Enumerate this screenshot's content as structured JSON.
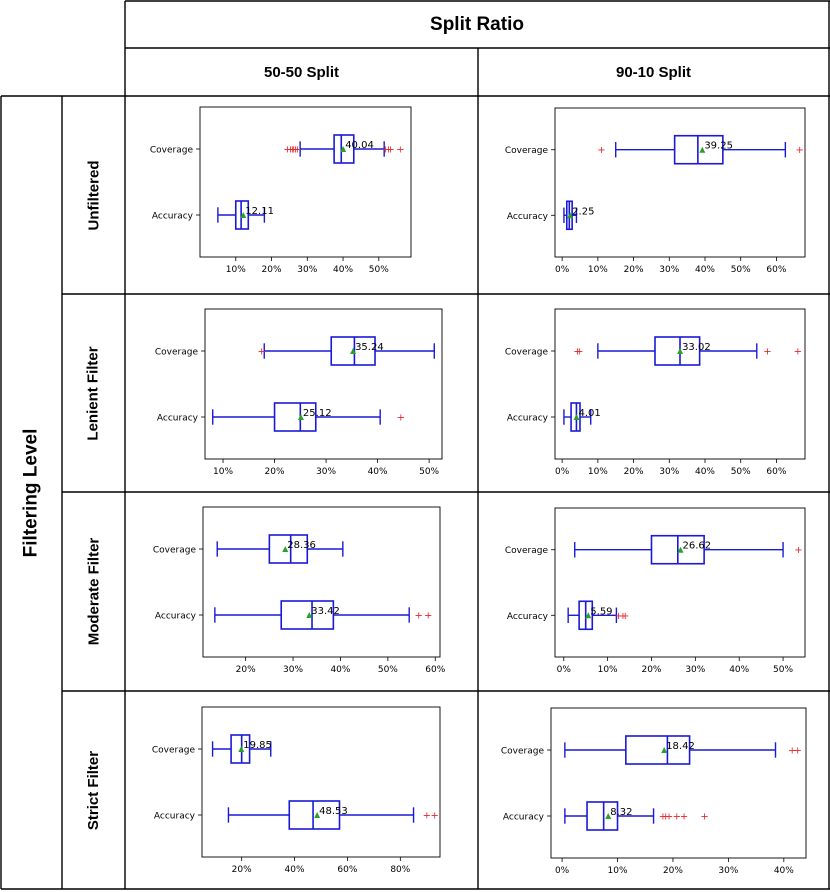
{
  "header": {
    "col_group": "Split Ratio",
    "row_group": "Filtering Level"
  },
  "columns": [
    "50-50 Split",
    "90-10 Split"
  ],
  "rows": [
    "Unfiltered",
    "Lenient Filter",
    "Moderate Filter",
    "Strict Filter"
  ],
  "colors": {
    "box": "#1a1ad6",
    "mean": "#2ca02c",
    "outlier": "#e8262b"
  },
  "chart_data": [
    {
      "type": "boxplot",
      "row": "Unfiltered",
      "column": "50-50 Split",
      "orientation": "horizontal",
      "xlim": [
        0,
        59
      ],
      "ticks": [
        10,
        20,
        30,
        40,
        50
      ],
      "tick_labels": [
        "10%",
        "20%",
        "30%",
        "40%",
        "50%"
      ],
      "categories": [
        "Coverage",
        "Accuracy"
      ],
      "series": [
        {
          "name": "Coverage",
          "whisker_low": 28,
          "q1": 37.5,
          "median": 39.5,
          "q3": 43,
          "whisker_high": 51.5,
          "mean": 40.04,
          "mean_label": "40.04",
          "outliers": [
            24.5,
            25.3,
            25.8,
            26.2,
            26.7,
            27.2,
            51.9,
            52.7,
            53.3,
            56
          ]
        },
        {
          "name": "Accuracy",
          "whisker_low": 5,
          "q1": 10,
          "median": 11.5,
          "q3": 13.5,
          "whisker_high": 18,
          "mean": 12.11,
          "mean_label": "12.11",
          "outliers": []
        }
      ]
    },
    {
      "type": "boxplot",
      "row": "Unfiltered",
      "column": "90-10 Split",
      "orientation": "horizontal",
      "xlim": [
        -2,
        68
      ],
      "ticks": [
        0,
        10,
        20,
        30,
        40,
        50,
        60
      ],
      "tick_labels": [
        "0%",
        "10%",
        "20%",
        "30%",
        "40%",
        "50%",
        "60%"
      ],
      "categories": [
        "Coverage",
        "Accuracy"
      ],
      "series": [
        {
          "name": "Coverage",
          "whisker_low": 15,
          "q1": 31.5,
          "median": 38,
          "q3": 45,
          "whisker_high": 62.5,
          "mean": 39.25,
          "mean_label": "39.25",
          "outliers": [
            11,
            66.5
          ]
        },
        {
          "name": "Accuracy",
          "whisker_low": 0.5,
          "q1": 1.3,
          "median": 2,
          "q3": 2.8,
          "whisker_high": 4,
          "mean": 2.25,
          "mean_label": "2.25",
          "outliers": []
        }
      ]
    },
    {
      "type": "boxplot",
      "row": "Lenient Filter",
      "column": "50-50 Split",
      "orientation": "horizontal",
      "xlim": [
        6.5,
        52.5
      ],
      "ticks": [
        10,
        20,
        30,
        40,
        50
      ],
      "tick_labels": [
        "10%",
        "20%",
        "30%",
        "40%",
        "50%"
      ],
      "categories": [
        "Coverage",
        "Accuracy"
      ],
      "series": [
        {
          "name": "Coverage",
          "whisker_low": 18,
          "q1": 31,
          "median": 35.5,
          "q3": 39.5,
          "whisker_high": 51,
          "mean": 35.24,
          "mean_label": "35.24",
          "outliers": [
            17.5
          ]
        },
        {
          "name": "Accuracy",
          "whisker_low": 8,
          "q1": 20,
          "median": 25,
          "q3": 28,
          "whisker_high": 40.5,
          "mean": 25.12,
          "mean_label": "25.12",
          "outliers": [
            44.5
          ]
        }
      ]
    },
    {
      "type": "boxplot",
      "row": "Lenient Filter",
      "column": "90-10 Split",
      "orientation": "horizontal",
      "xlim": [
        -2,
        68
      ],
      "ticks": [
        0,
        10,
        20,
        30,
        40,
        50,
        60
      ],
      "tick_labels": [
        "0%",
        "10%",
        "20%",
        "30%",
        "40%",
        "50%",
        "60%"
      ],
      "categories": [
        "Coverage",
        "Accuracy"
      ],
      "series": [
        {
          "name": "Coverage",
          "whisker_low": 10,
          "q1": 26,
          "median": 33,
          "q3": 38.5,
          "whisker_high": 54.5,
          "mean": 33.02,
          "mean_label": "33.02",
          "outliers": [
            4.3,
            4.8,
            57.5,
            66
          ]
        },
        {
          "name": "Accuracy",
          "whisker_low": 0.5,
          "q1": 2.5,
          "median": 4,
          "q3": 5,
          "whisker_high": 8,
          "mean": 4.01,
          "mean_label": "4.01",
          "outliers": []
        }
      ]
    },
    {
      "type": "boxplot",
      "row": "Moderate Filter",
      "column": "50-50 Split",
      "orientation": "horizontal",
      "xlim": [
        11,
        61
      ],
      "ticks": [
        20,
        30,
        40,
        50,
        60
      ],
      "tick_labels": [
        "20%",
        "30%",
        "40%",
        "50%",
        "60%"
      ],
      "categories": [
        "Coverage",
        "Accuracy"
      ],
      "series": [
        {
          "name": "Coverage",
          "whisker_low": 14,
          "q1": 25,
          "median": 29.5,
          "q3": 33,
          "whisker_high": 40.5,
          "mean": 28.36,
          "mean_label": "28.36",
          "outliers": []
        },
        {
          "name": "Accuracy",
          "whisker_low": 13.5,
          "q1": 27.5,
          "median": 34,
          "q3": 38.5,
          "whisker_high": 54.5,
          "mean": 33.42,
          "mean_label": "33.42",
          "outliers": [
            56.5,
            58.5
          ]
        }
      ]
    },
    {
      "type": "boxplot",
      "row": "Moderate Filter",
      "column": "90-10 Split",
      "orientation": "horizontal",
      "xlim": [
        -2,
        55
      ],
      "ticks": [
        0,
        10,
        20,
        30,
        40,
        50
      ],
      "tick_labels": [
        "0%",
        "10%",
        "20%",
        "30%",
        "40%",
        "50%"
      ],
      "categories": [
        "Coverage",
        "Accuracy"
      ],
      "series": [
        {
          "name": "Coverage",
          "whisker_low": 2.5,
          "q1": 20,
          "median": 26,
          "q3": 32,
          "whisker_high": 50,
          "mean": 26.62,
          "mean_label": "26.62",
          "outliers": [
            53.5
          ]
        },
        {
          "name": "Accuracy",
          "whisker_low": 1,
          "q1": 3.5,
          "median": 5,
          "q3": 6.5,
          "whisker_high": 12,
          "mean": 5.59,
          "mean_label": "5.59",
          "outliers": [
            12.5,
            13.5,
            14
          ]
        }
      ]
    },
    {
      "type": "boxplot",
      "row": "Strict Filter",
      "column": "50-50 Split",
      "orientation": "horizontal",
      "xlim": [
        5,
        95
      ],
      "ticks": [
        20,
        40,
        60,
        80
      ],
      "tick_labels": [
        "20%",
        "40%",
        "60%",
        "80%"
      ],
      "categories": [
        "Coverage",
        "Accuracy"
      ],
      "series": [
        {
          "name": "Coverage",
          "whisker_low": 9,
          "q1": 16,
          "median": 20,
          "q3": 23,
          "whisker_high": 31,
          "mean": 19.85,
          "mean_label": "19.85",
          "outliers": []
        },
        {
          "name": "Accuracy",
          "whisker_low": 15,
          "q1": 38,
          "median": 47,
          "q3": 57,
          "whisker_high": 85,
          "mean": 48.53,
          "mean_label": "48.53",
          "outliers": [
            90,
            93
          ]
        }
      ]
    },
    {
      "type": "boxplot",
      "row": "Strict Filter",
      "column": "90-10 Split",
      "orientation": "horizontal",
      "xlim": [
        -2,
        44
      ],
      "ticks": [
        0,
        10,
        20,
        30,
        40
      ],
      "tick_labels": [
        "0%",
        "10%",
        "20%",
        "30%",
        "40%"
      ],
      "categories": [
        "Coverage",
        "Accuracy"
      ],
      "series": [
        {
          "name": "Coverage",
          "whisker_low": 0.5,
          "q1": 11.5,
          "median": 19,
          "q3": 23,
          "whisker_high": 38.5,
          "mean": 18.42,
          "mean_label": "18.42",
          "outliers": [
            41.5,
            42.5
          ]
        },
        {
          "name": "Accuracy",
          "whisker_low": 0.5,
          "q1": 4.5,
          "median": 7.5,
          "q3": 10,
          "whisker_high": 16.5,
          "mean": 8.32,
          "mean_label": "8.32",
          "outliers": [
            18.2,
            18.7,
            19.3,
            20.7,
            22,
            25.7
          ]
        }
      ]
    }
  ]
}
